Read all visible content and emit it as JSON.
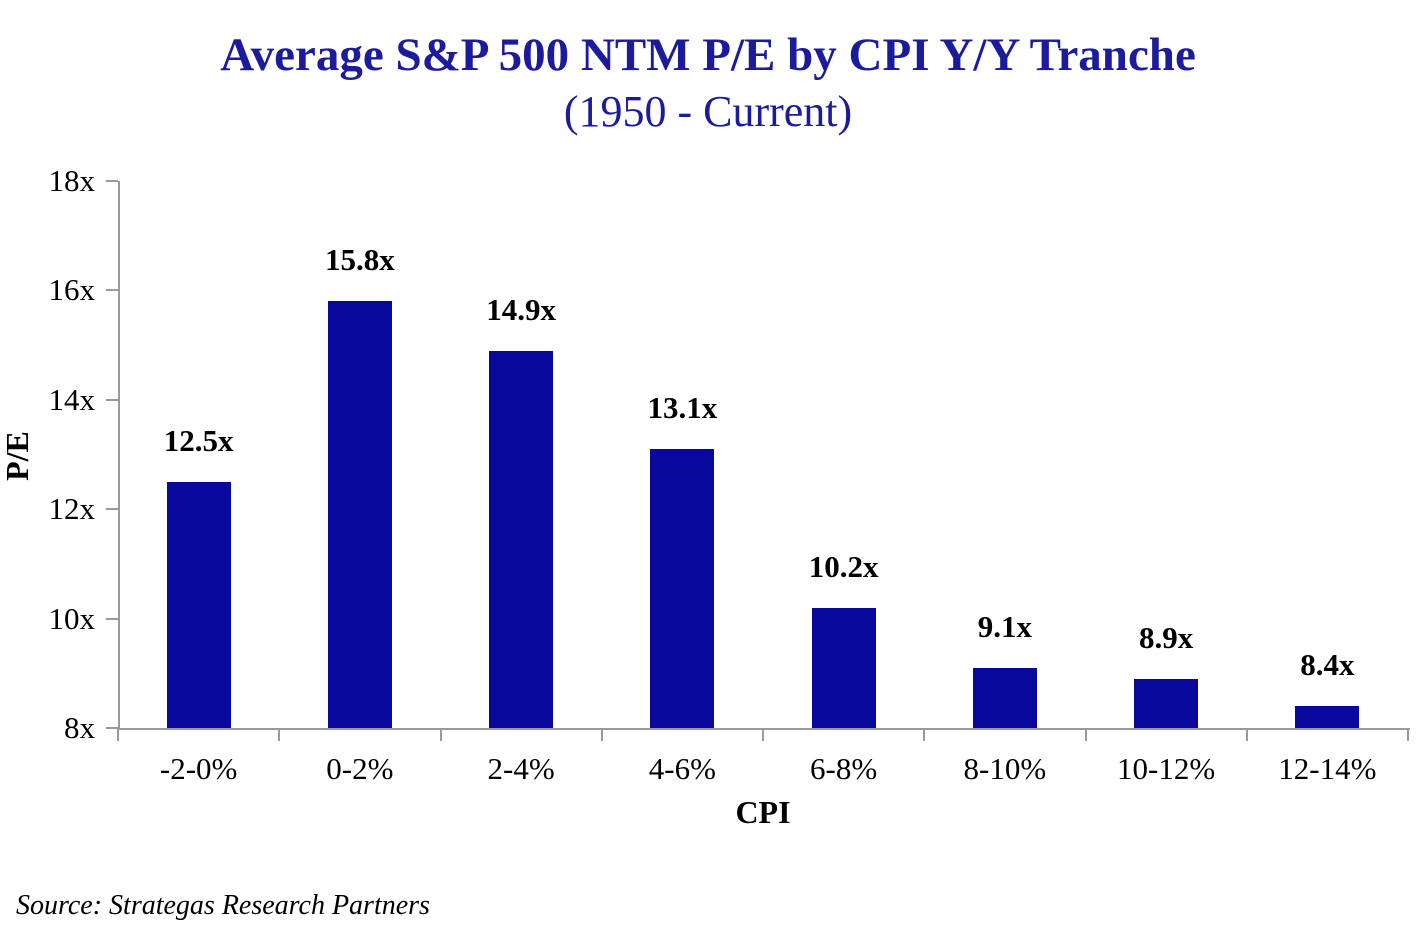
{
  "chart_data": {
    "type": "bar",
    "title": "Average S&P 500 NTM P/E by CPI Y/Y Tranche",
    "subtitle": "(1950 - Current)",
    "categories": [
      "-2-0%",
      "0-2%",
      "2-4%",
      "4-6%",
      "6-8%",
      "8-10%",
      "10-12%",
      "12-14%"
    ],
    "values": [
      12.5,
      15.8,
      14.9,
      13.1,
      10.2,
      9.1,
      8.9,
      8.4
    ],
    "value_labels": [
      "12.5x",
      "15.8x",
      "14.9x",
      "13.1x",
      "10.2x",
      "9.1x",
      "8.9x",
      "8.4x"
    ],
    "xlabel": "CPI",
    "ylabel": "P/E",
    "ylim": [
      8,
      18
    ],
    "ytick_step": 2,
    "ytick_labels": [
      "8x",
      "10x",
      "12x",
      "14x",
      "16x",
      "18x"
    ],
    "grid": false,
    "legend": "none",
    "bar_color": "#08089c",
    "title_color": "#1b1b9c",
    "axis_color": "#9a9a9a"
  },
  "source": {
    "text": "Source: Strategas Research Partners"
  }
}
